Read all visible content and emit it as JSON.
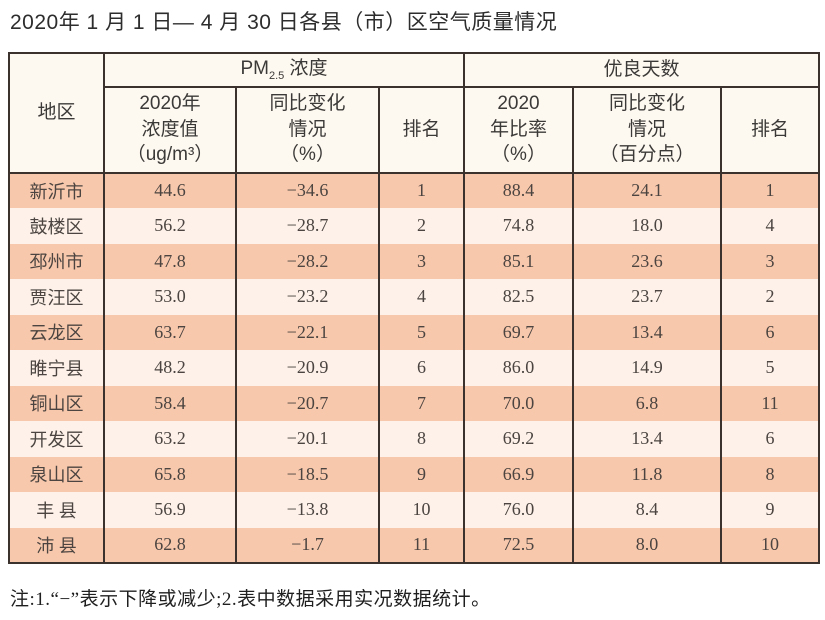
{
  "title": "2020年 1 月 1 日— 4 月 30 日各县（市）区空气质量情况",
  "table": {
    "region_header": "地区",
    "pm_group": {
      "prefix": "PM",
      "sub": "2.5",
      "suffix": " 浓度"
    },
    "good_group": "优良天数",
    "subheaders": [
      "2020年\n浓度值\n（ug/m³）",
      "同比变化\n情况\n（%）",
      "排名",
      "2020\n年比率\n（%）",
      "同比变化\n情况\n（百分点）",
      "排名"
    ],
    "rows": [
      {
        "region": "新沂市",
        "values": [
          "44.6",
          "−34.6",
          "1",
          "88.4",
          "24.1",
          "1"
        ]
      },
      {
        "region": "鼓楼区",
        "values": [
          "56.2",
          "−28.7",
          "2",
          "74.8",
          "18.0",
          "4"
        ]
      },
      {
        "region": "邳州市",
        "values": [
          "47.8",
          "−28.2",
          "3",
          "85.1",
          "23.6",
          "3"
        ]
      },
      {
        "region": "贾汪区",
        "values": [
          "53.0",
          "−23.2",
          "4",
          "82.5",
          "23.7",
          "2"
        ]
      },
      {
        "region": "云龙区",
        "values": [
          "63.7",
          "−22.1",
          "5",
          "69.7",
          "13.4",
          "6"
        ]
      },
      {
        "region": "睢宁县",
        "values": [
          "48.2",
          "−20.9",
          "6",
          "86.0",
          "14.9",
          "5"
        ]
      },
      {
        "region": "铜山区",
        "values": [
          "58.4",
          "−20.7",
          "7",
          "70.0",
          "6.8",
          "11"
        ]
      },
      {
        "region": "开发区",
        "values": [
          "63.2",
          "−20.1",
          "8",
          "69.2",
          "13.4",
          "6"
        ]
      },
      {
        "region": "泉山区",
        "values": [
          "65.8",
          "−18.5",
          "9",
          "66.9",
          "11.8",
          "8"
        ]
      },
      {
        "region": "丰 县",
        "values": [
          "56.9",
          "−13.8",
          "10",
          "76.0",
          "8.4",
          "9"
        ]
      },
      {
        "region": "沛 县",
        "values": [
          "62.8",
          "−1.7",
          "11",
          "72.5",
          "8.0",
          "10"
        ]
      }
    ]
  },
  "note": "注:1.“−”表示下降或减少;2.表中数据采用实况数据统计。",
  "colors": {
    "row_odd": "#f8c8ac",
    "row_even": "#fdf1e9",
    "header_bg": "#fdf8f0",
    "border": "#3b322e"
  }
}
